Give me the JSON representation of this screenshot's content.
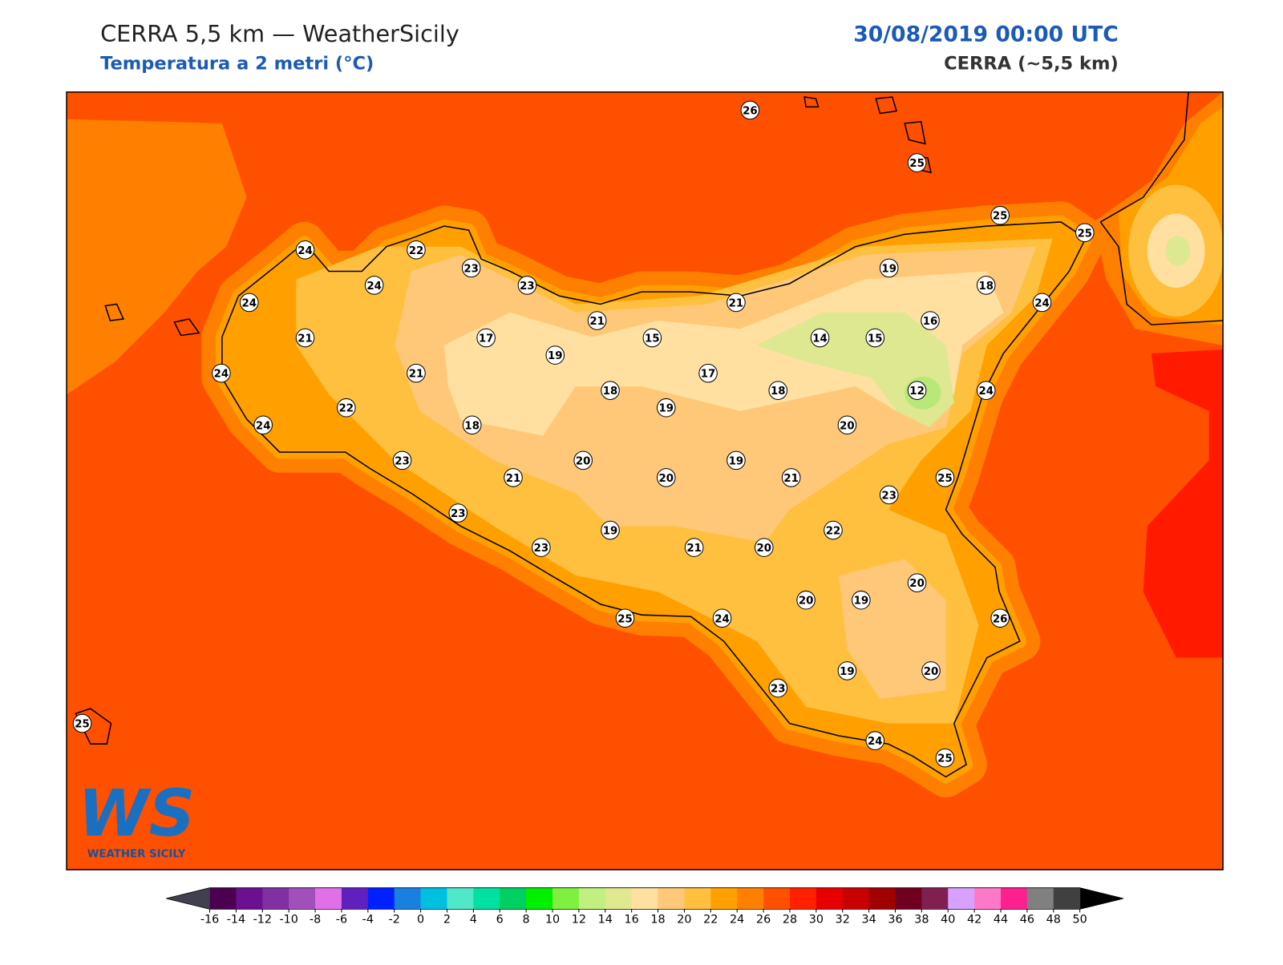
{
  "header": {
    "title": "CERRA 5,5 km — WeatherSicily",
    "subtitle": "Temperatura a 2 metri (°C)",
    "date": "30/08/2019 00:00 UTC",
    "model": "CERRA (~5,5 km)"
  },
  "stations": [
    26,
    25,
    25,
    25,
    24,
    22,
    23,
    23,
    24,
    19,
    18,
    24,
    21,
    24,
    21,
    16,
    21,
    17,
    15,
    14,
    15,
    19,
    24,
    21,
    17,
    12,
    18,
    18,
    24,
    22,
    19,
    24,
    18,
    20,
    23,
    20,
    19,
    21,
    20,
    21,
    25,
    23,
    23,
    19,
    22,
    23,
    21,
    20,
    20,
    20,
    19,
    25,
    24,
    26,
    19,
    20,
    23,
    25,
    24,
    25
  ],
  "colorbar": {
    "ticks": [
      -16,
      -14,
      -12,
      -10,
      -8,
      -6,
      -4,
      -2,
      0,
      2,
      4,
      6,
      8,
      10,
      12,
      14,
      16,
      18,
      20,
      22,
      24,
      26,
      28,
      30,
      32,
      34,
      36,
      38,
      40,
      42,
      44,
      46,
      48,
      50
    ],
    "colors": [
      "#4b0050",
      "#6a1090",
      "#8030a0",
      "#a050b8",
      "#e070e8",
      "#6020c0",
      "#0020ff",
      "#1a80e0",
      "#00c0e0",
      "#50e8c8",
      "#00e0a0",
      "#00d060",
      "#00f000",
      "#80f040",
      "#c0f080",
      "#e0e890",
      "#ffe0a0",
      "#ffc878",
      "#ffc040",
      "#ffa000",
      "#ff8000",
      "#ff5000",
      "#ff2000",
      "#e80000",
      "#c80000",
      "#a00000",
      "#700020",
      "#802050",
      "#d8a0ff",
      "#ff78c8",
      "#ff2090",
      "#808080",
      "#404040"
    ],
    "under_color": "#404050",
    "over_color": "#000000"
  },
  "logo": {
    "mark": "WS",
    "text": "WEATHER SICILY"
  }
}
